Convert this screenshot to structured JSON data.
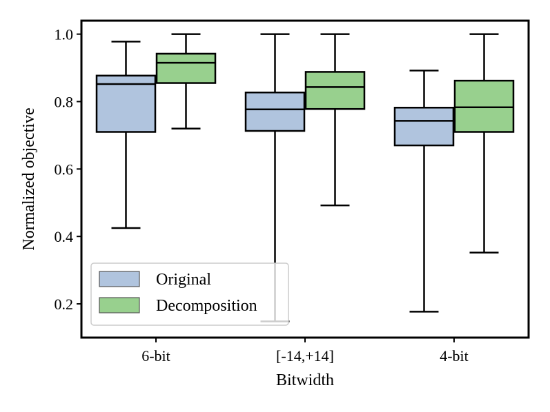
{
  "chart_data": {
    "type": "box",
    "xlabel": "Bitwidth",
    "ylabel": "Normalized objective",
    "ylim": [
      0.1,
      1.04
    ],
    "yticks": [
      0.2,
      0.4,
      0.6,
      0.8,
      1.0
    ],
    "ytick_labels": [
      "0.2",
      "0.4",
      "0.6",
      "0.8",
      "1.0"
    ],
    "categories": [
      "6-bit",
      "[-14,+14]",
      "4-bit"
    ],
    "grid": false,
    "legend_position": "bottom-left",
    "series": [
      {
        "name": "Original",
        "color": "#b0c4de",
        "boxes": [
          {
            "whislo": 0.425,
            "q1": 0.71,
            "med": 0.852,
            "q3": 0.877,
            "whishi": 0.978
          },
          {
            "whislo": 0.148,
            "q1": 0.713,
            "med": 0.777,
            "q3": 0.827,
            "whishi": 1.0
          },
          {
            "whislo": 0.177,
            "q1": 0.67,
            "med": 0.743,
            "q3": 0.782,
            "whishi": 0.892
          }
        ]
      },
      {
        "name": "Decomposition",
        "color": "#98d08e",
        "boxes": [
          {
            "whislo": 0.72,
            "q1": 0.855,
            "med": 0.915,
            "q3": 0.942,
            "whishi": 1.0
          },
          {
            "whislo": 0.492,
            "q1": 0.778,
            "med": 0.843,
            "q3": 0.888,
            "whishi": 1.0
          },
          {
            "whislo": 0.352,
            "q1": 0.71,
            "med": 0.783,
            "q3": 0.862,
            "whishi": 1.0
          }
        ]
      }
    ]
  }
}
